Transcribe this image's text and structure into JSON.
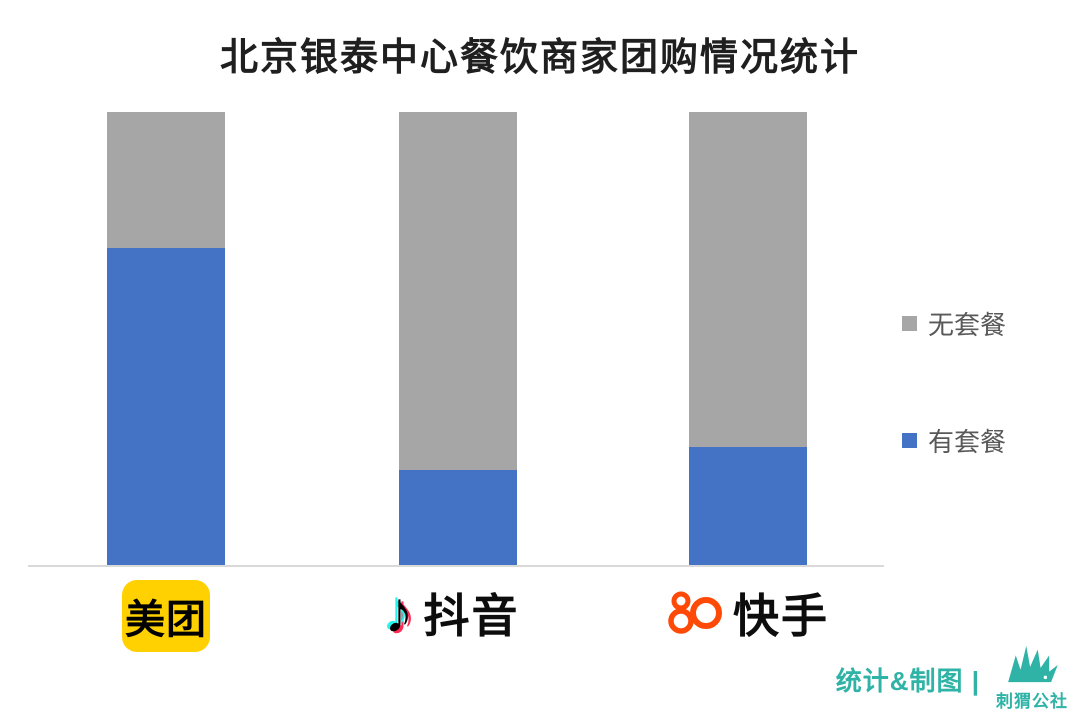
{
  "title": "北京银泰中心餐饮商家团购情况统计",
  "chart_data": {
    "type": "bar",
    "stacked": true,
    "unit": "percent",
    "title": "北京银泰中心餐饮商家团购情况统计",
    "categories": [
      "美团",
      "抖音",
      "快手"
    ],
    "series": [
      {
        "name": "有套餐",
        "color": "#4472C4",
        "values": [
          70,
          21,
          26
        ]
      },
      {
        "name": "无套餐",
        "color": "#A6A6A6",
        "values": [
          30,
          79,
          74
        ]
      }
    ],
    "ylim": [
      0,
      100
    ],
    "grid": false,
    "legend_position": "right"
  },
  "legend": {
    "items": [
      {
        "label": "无套餐",
        "swatch_color": "#A6A6A6"
      },
      {
        "label": "有套餐",
        "swatch_color": "#4472C4"
      }
    ]
  },
  "icons": {
    "douyin_note": "♪"
  },
  "colors": {
    "meituan_yellow": "#FFD100",
    "kuaishou_orange": "#FF4906",
    "douyin_cyan": "#25F4EE",
    "douyin_pink": "#FE2C55",
    "accent_teal": "#2FB3A6",
    "axis_gray": "#D9D9D9"
  },
  "footer": {
    "credit": "统计&制图 |",
    "brand": "刺猬公社"
  }
}
